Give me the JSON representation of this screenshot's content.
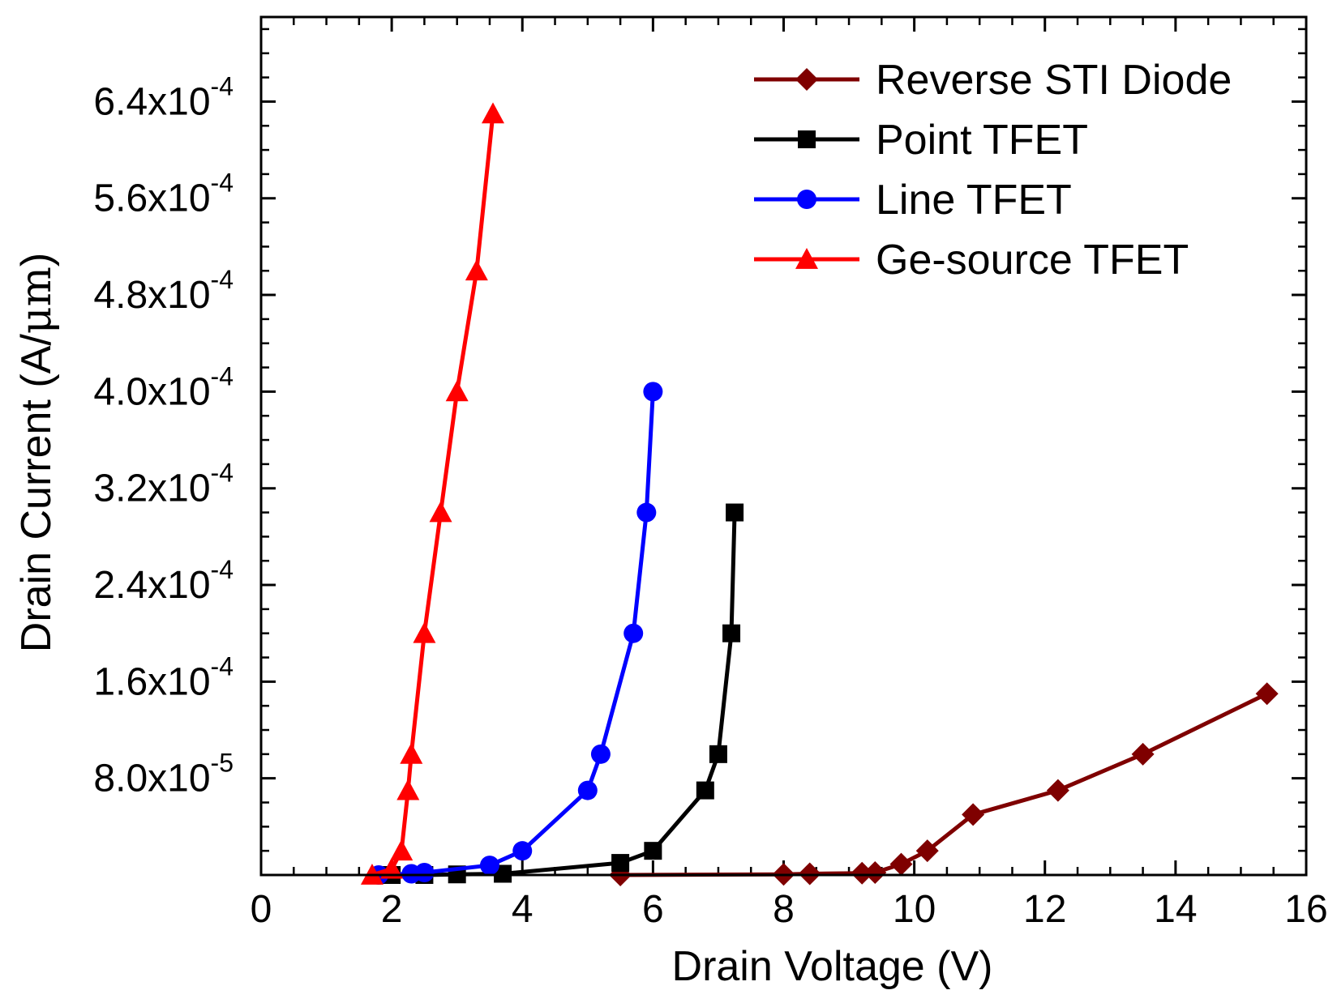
{
  "chart_data": {
    "type": "line",
    "title": "",
    "xlabel": "Drain Voltage (V)",
    "ylabel_base": "Drain Current (A/",
    "ylabel_unit": "μm",
    "ylabel_close": ")",
    "xlim": [
      0,
      16
    ],
    "ylim": [
      0,
      0.00071
    ],
    "grid": false,
    "legend_position": "top-right",
    "x_ticks": [
      {
        "value": 0,
        "label": "0"
      },
      {
        "value": 2,
        "label": "2"
      },
      {
        "value": 4,
        "label": "4"
      },
      {
        "value": 6,
        "label": "6"
      },
      {
        "value": 8,
        "label": "8"
      },
      {
        "value": 10,
        "label": "10"
      },
      {
        "value": 12,
        "label": "12"
      },
      {
        "value": 14,
        "label": "14"
      },
      {
        "value": 16,
        "label": "16"
      }
    ],
    "y_ticks": [
      {
        "value": 8e-05,
        "mantissa": "8.0x10",
        "exponent": "-5"
      },
      {
        "value": 0.00016,
        "mantissa": "1.6x10",
        "exponent": "-4"
      },
      {
        "value": 0.00024,
        "mantissa": "2.4x10",
        "exponent": "-4"
      },
      {
        "value": 0.00032,
        "mantissa": "3.2x10",
        "exponent": "-4"
      },
      {
        "value": 0.0004,
        "mantissa": "4.0x10",
        "exponent": "-4"
      },
      {
        "value": 0.00048,
        "mantissa": "4.8x10",
        "exponent": "-4"
      },
      {
        "value": 0.00056,
        "mantissa": "5.6x10",
        "exponent": "-4"
      },
      {
        "value": 0.00064,
        "mantissa": "6.4x10",
        "exponent": "-4"
      }
    ],
    "series": [
      {
        "name": "Reverse STI Diode",
        "color": "#7f0000",
        "marker": "diamond",
        "points": [
          [
            5.5,
            0
          ],
          [
            8.0,
            5e-07
          ],
          [
            8.4,
            1e-06
          ],
          [
            9.2,
            1.5e-06
          ],
          [
            9.4,
            2e-06
          ],
          [
            9.8,
            9e-06
          ],
          [
            10.2,
            2e-05
          ],
          [
            10.9,
            5e-05
          ],
          [
            12.2,
            7e-05
          ],
          [
            13.5,
            0.0001
          ],
          [
            15.4,
            0.00015
          ]
        ]
      },
      {
        "name": "Point TFET",
        "color": "#000000",
        "marker": "square",
        "points": [
          [
            2.0,
            0
          ],
          [
            2.5,
            0
          ],
          [
            3.0,
            5e-07
          ],
          [
            3.7,
            1e-06
          ],
          [
            5.5,
            1e-05
          ],
          [
            6.0,
            2e-05
          ],
          [
            6.8,
            7e-05
          ],
          [
            7.0,
            0.0001
          ],
          [
            7.2,
            0.0002
          ],
          [
            7.25,
            0.0003
          ]
        ]
      },
      {
        "name": "Line TFET",
        "color": "#0000ff",
        "marker": "circle",
        "points": [
          [
            1.8,
            0
          ],
          [
            2.3,
            1e-06
          ],
          [
            2.5,
            2e-06
          ],
          [
            3.5,
            8e-06
          ],
          [
            4.0,
            2e-05
          ],
          [
            5.0,
            7e-05
          ],
          [
            5.2,
            0.0001
          ],
          [
            5.7,
            0.0002
          ],
          [
            5.9,
            0.0003
          ],
          [
            6.0,
            0.0004
          ]
        ]
      },
      {
        "name": "Ge-source TFET",
        "color": "#ff0000",
        "marker": "triangle",
        "points": [
          [
            1.7,
            0
          ],
          [
            2.0,
            5e-06
          ],
          [
            2.15,
            2e-05
          ],
          [
            2.25,
            7e-05
          ],
          [
            2.3,
            0.0001
          ],
          [
            2.5,
            0.0002
          ],
          [
            2.75,
            0.0003
          ],
          [
            3.0,
            0.0004
          ],
          [
            3.3,
            0.0005
          ],
          [
            3.55,
            0.00063
          ]
        ]
      }
    ]
  }
}
